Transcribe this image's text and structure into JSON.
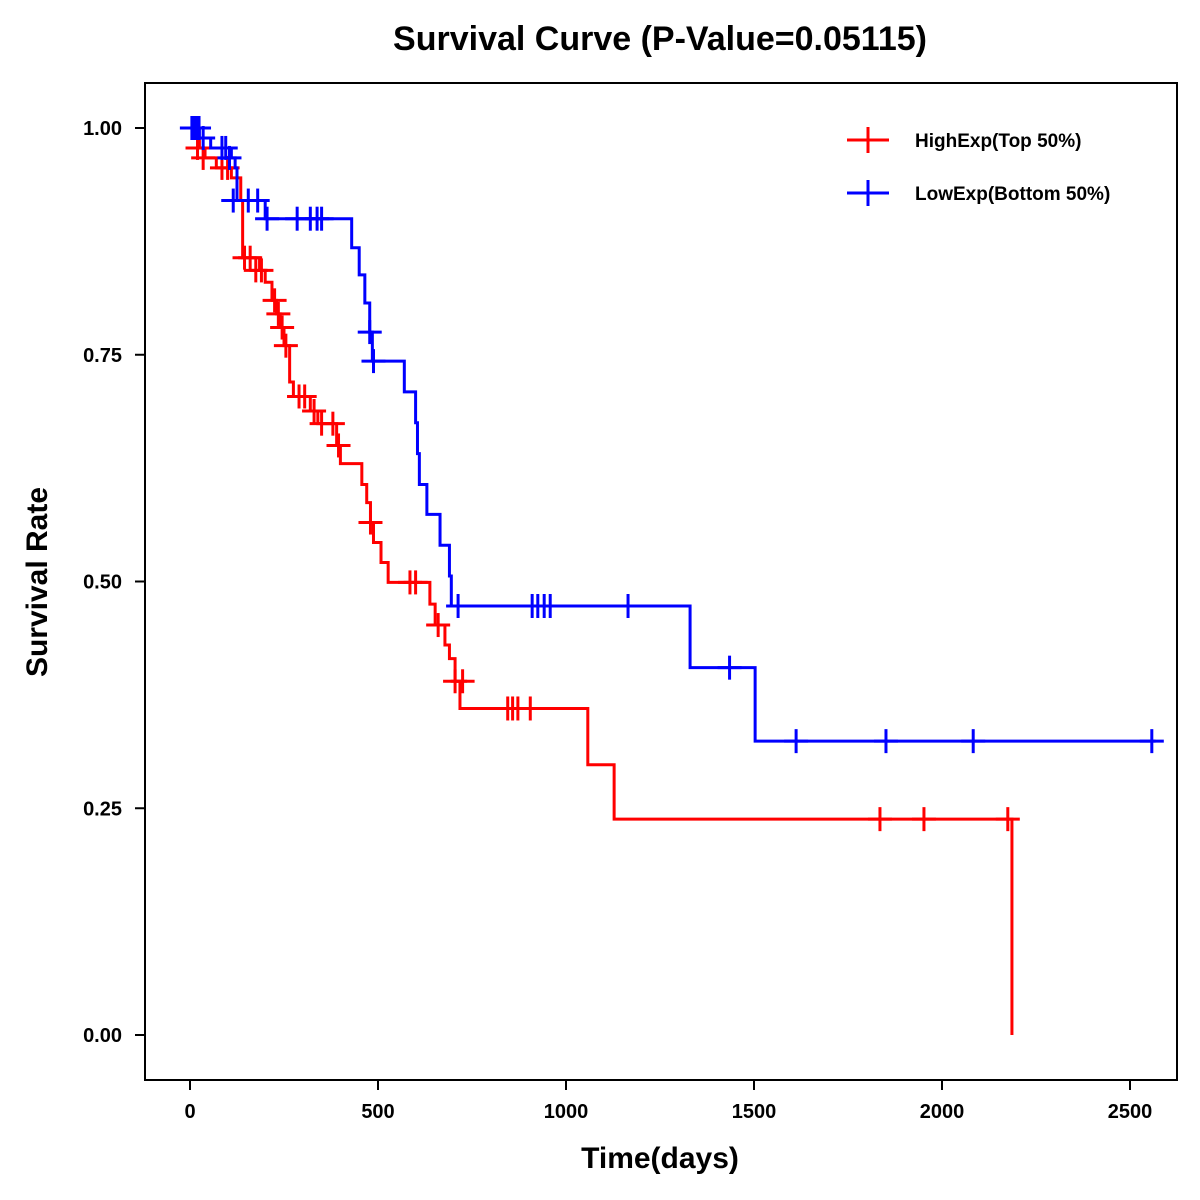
{
  "chart_data": {
    "type": "line",
    "subtype": "kaplan-meier step",
    "title": "Survival Curve (P-Value=0.05115)",
    "xlabel": "Time(days)",
    "ylabel": "Survival Rate",
    "xlim": [
      -110,
      2600
    ],
    "ylim": [
      -0.05,
      1.05
    ],
    "x_ticks": [
      0,
      500,
      1000,
      1500,
      2000,
      2500
    ],
    "x_tick_labels": [
      "0",
      "500",
      "1000",
      "1500",
      "2000",
      "2500"
    ],
    "y_ticks": [
      0,
      0.25,
      0.5,
      0.75,
      1.0
    ],
    "y_tick_labels": [
      "0.00",
      "0.25",
      "0.50",
      "0.75",
      "1.00"
    ],
    "grid": false,
    "legend_position": "top-right",
    "series": [
      {
        "name": "HighExp(Top 50%)",
        "color": "#ff0000",
        "steps": [
          [
            0,
            1.0
          ],
          [
            10,
            0.989
          ],
          [
            25,
            0.978
          ],
          [
            40,
            0.967
          ],
          [
            70,
            0.956
          ],
          [
            110,
            0.945
          ],
          [
            135,
            0.92
          ],
          [
            140,
            0.857
          ],
          [
            185,
            0.843
          ],
          [
            200,
            0.83
          ],
          [
            218,
            0.81
          ],
          [
            230,
            0.795
          ],
          [
            240,
            0.78
          ],
          [
            250,
            0.76
          ],
          [
            265,
            0.72
          ],
          [
            275,
            0.704
          ],
          [
            320,
            0.688
          ],
          [
            340,
            0.674
          ],
          [
            390,
            0.65
          ],
          [
            400,
            0.63
          ],
          [
            457,
            0.607
          ],
          [
            470,
            0.587
          ],
          [
            480,
            0.565
          ],
          [
            488,
            0.543
          ],
          [
            508,
            0.521
          ],
          [
            527,
            0.499
          ],
          [
            638,
            0.475
          ],
          [
            652,
            0.452
          ],
          [
            678,
            0.43
          ],
          [
            690,
            0.415
          ],
          [
            705,
            0.39
          ],
          [
            718,
            0.36
          ],
          [
            1058,
            0.298
          ],
          [
            1128,
            0.238
          ],
          [
            2186,
            0.0
          ]
        ],
        "end_time": 2186,
        "censored": [
          [
            20,
            0.978
          ],
          [
            35,
            0.967
          ],
          [
            85,
            0.956
          ],
          [
            100,
            0.956
          ],
          [
            145,
            0.857
          ],
          [
            160,
            0.857
          ],
          [
            175,
            0.843
          ],
          [
            190,
            0.843
          ],
          [
            225,
            0.81
          ],
          [
            235,
            0.795
          ],
          [
            245,
            0.78
          ],
          [
            255,
            0.76
          ],
          [
            290,
            0.704
          ],
          [
            305,
            0.704
          ],
          [
            330,
            0.688
          ],
          [
            350,
            0.674
          ],
          [
            380,
            0.674
          ],
          [
            395,
            0.65
          ],
          [
            480,
            0.565
          ],
          [
            585,
            0.499
          ],
          [
            600,
            0.499
          ],
          [
            660,
            0.452
          ],
          [
            705,
            0.39
          ],
          [
            725,
            0.39
          ],
          [
            845,
            0.36
          ],
          [
            858,
            0.36
          ],
          [
            872,
            0.36
          ],
          [
            905,
            0.36
          ],
          [
            1835,
            0.238
          ],
          [
            1952,
            0.238
          ],
          [
            2175,
            0.238
          ]
        ]
      },
      {
        "name": "LowExp(Bottom 50%)",
        "color": "#0000ff",
        "steps": [
          [
            0,
            1.0
          ],
          [
            25,
            0.989
          ],
          [
            55,
            0.978
          ],
          [
            110,
            0.967
          ],
          [
            120,
            0.956
          ],
          [
            125,
            0.92
          ],
          [
            200,
            0.9
          ],
          [
            430,
            0.868
          ],
          [
            450,
            0.838
          ],
          [
            465,
            0.807
          ],
          [
            478,
            0.775
          ],
          [
            485,
            0.743
          ],
          [
            570,
            0.709
          ],
          [
            600,
            0.675
          ],
          [
            605,
            0.641
          ],
          [
            610,
            0.607
          ],
          [
            630,
            0.574
          ],
          [
            665,
            0.54
          ],
          [
            690,
            0.506
          ],
          [
            695,
            0.473
          ],
          [
            1330,
            0.405
          ],
          [
            1503,
            0.324
          ]
        ],
        "end_time": 2600,
        "censored": [
          [
            5,
            1.0
          ],
          [
            12,
            1.0
          ],
          [
            18,
            1.0
          ],
          [
            24,
            1.0
          ],
          [
            35,
            0.989
          ],
          [
            85,
            0.978
          ],
          [
            95,
            0.978
          ],
          [
            105,
            0.967
          ],
          [
            115,
            0.92
          ],
          [
            155,
            0.92
          ],
          [
            180,
            0.92
          ],
          [
            205,
            0.9
          ],
          [
            285,
            0.9
          ],
          [
            320,
            0.9
          ],
          [
            338,
            0.9
          ],
          [
            350,
            0.9
          ],
          [
            478,
            0.775
          ],
          [
            488,
            0.743
          ],
          [
            713,
            0.473
          ],
          [
            910,
            0.473
          ],
          [
            925,
            0.473
          ],
          [
            942,
            0.473
          ],
          [
            958,
            0.473
          ],
          [
            1165,
            0.473
          ],
          [
            1435,
            0.405
          ],
          [
            1612,
            0.324
          ],
          [
            1851,
            0.324
          ],
          [
            2083,
            0.324
          ],
          [
            2558,
            0.324
          ]
        ]
      }
    ]
  }
}
